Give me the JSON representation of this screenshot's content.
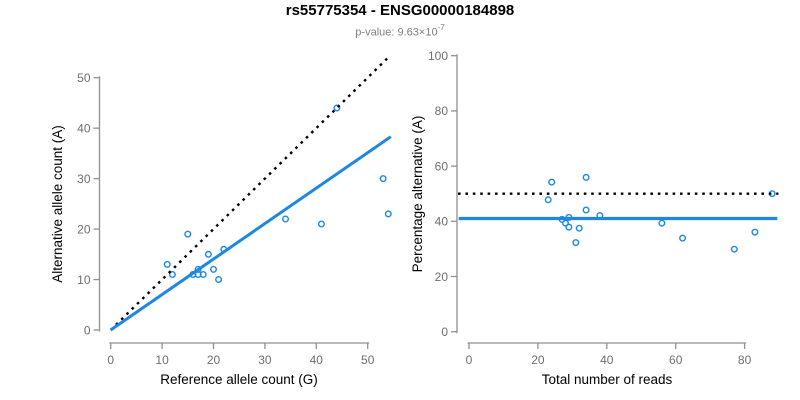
{
  "header": {
    "title": "rs55775354 - ENSG00000184898",
    "subtitle_prefix": "p-value: 9.63×10",
    "subtitle_exponent": "-7"
  },
  "colors": {
    "blue": "#1e87e5",
    "black": "#000000",
    "axis": "#909090",
    "tick_text": "#6e6e6e",
    "subtitle_gray": "#7d7d7d"
  },
  "chart_data": [
    {
      "type": "scatter",
      "name": "allele-count-scatter",
      "xlabel": "Reference allele count (G)",
      "ylabel": "Alternative allele count (A)",
      "xticks": [
        0,
        10,
        20,
        30,
        40,
        50
      ],
      "yticks": [
        0,
        10,
        20,
        30,
        40,
        50
      ],
      "xlim": [
        0,
        54.5
      ],
      "ylim": [
        0,
        54.5
      ],
      "grid": false,
      "marker": "open-circle",
      "points": [
        [
          11,
          13
        ],
        [
          12,
          11
        ],
        [
          15,
          19
        ],
        [
          16,
          11
        ],
        [
          17,
          11
        ],
        [
          17,
          12
        ],
        [
          18,
          11
        ],
        [
          19,
          15
        ],
        [
          20,
          12
        ],
        [
          21,
          10
        ],
        [
          22,
          16
        ],
        [
          34,
          22
        ],
        [
          41,
          21
        ],
        [
          44,
          44
        ],
        [
          53,
          30
        ],
        [
          54,
          23
        ]
      ],
      "lines": [
        {
          "name": "identity-line",
          "type": "abline",
          "slope": 1,
          "intercept": 0,
          "dash": true,
          "color_key": "black",
          "width": 2.4,
          "xrange": [
            0,
            53.8
          ]
        },
        {
          "name": "fit-line",
          "type": "abline",
          "slope": 0.703,
          "intercept": 0,
          "dash": false,
          "color_key": "blue",
          "width": 3,
          "xrange": [
            0,
            54.5
          ]
        }
      ]
    },
    {
      "type": "scatter",
      "name": "percentage-alternative-scatter",
      "xlabel": "Total number of reads",
      "ylabel": "Percentage alternative (A)",
      "xticks": [
        0,
        20,
        40,
        60,
        80
      ],
      "yticks": [
        0,
        20,
        40,
        60,
        80,
        100
      ],
      "xlim": [
        0,
        90
      ],
      "ylim": [
        0,
        100
      ],
      "grid": false,
      "marker": "open-circle",
      "points": [
        [
          23,
          47.8
        ],
        [
          24,
          54.2
        ],
        [
          27,
          40.7
        ],
        [
          28,
          39.3
        ],
        [
          29,
          41.4
        ],
        [
          29,
          37.9
        ],
        [
          31,
          32.3
        ],
        [
          32,
          37.5
        ],
        [
          34,
          55.9
        ],
        [
          34,
          44.1
        ],
        [
          38,
          42.1
        ],
        [
          56,
          39.3
        ],
        [
          62,
          33.9
        ],
        [
          77,
          29.9
        ],
        [
          83,
          36.1
        ],
        [
          88,
          50.0
        ]
      ],
      "lines": [
        {
          "name": "fifty-percent-line",
          "type": "hline",
          "y": 50,
          "dash": true,
          "color_key": "black",
          "width": 2.4,
          "xrange": [
            -3.2,
            89.8
          ]
        },
        {
          "name": "mean-percentage-line",
          "type": "hline",
          "y": 41,
          "dash": false,
          "color_key": "blue",
          "width": 3.2,
          "xrange": [
            -3,
            89.5
          ]
        }
      ]
    }
  ]
}
